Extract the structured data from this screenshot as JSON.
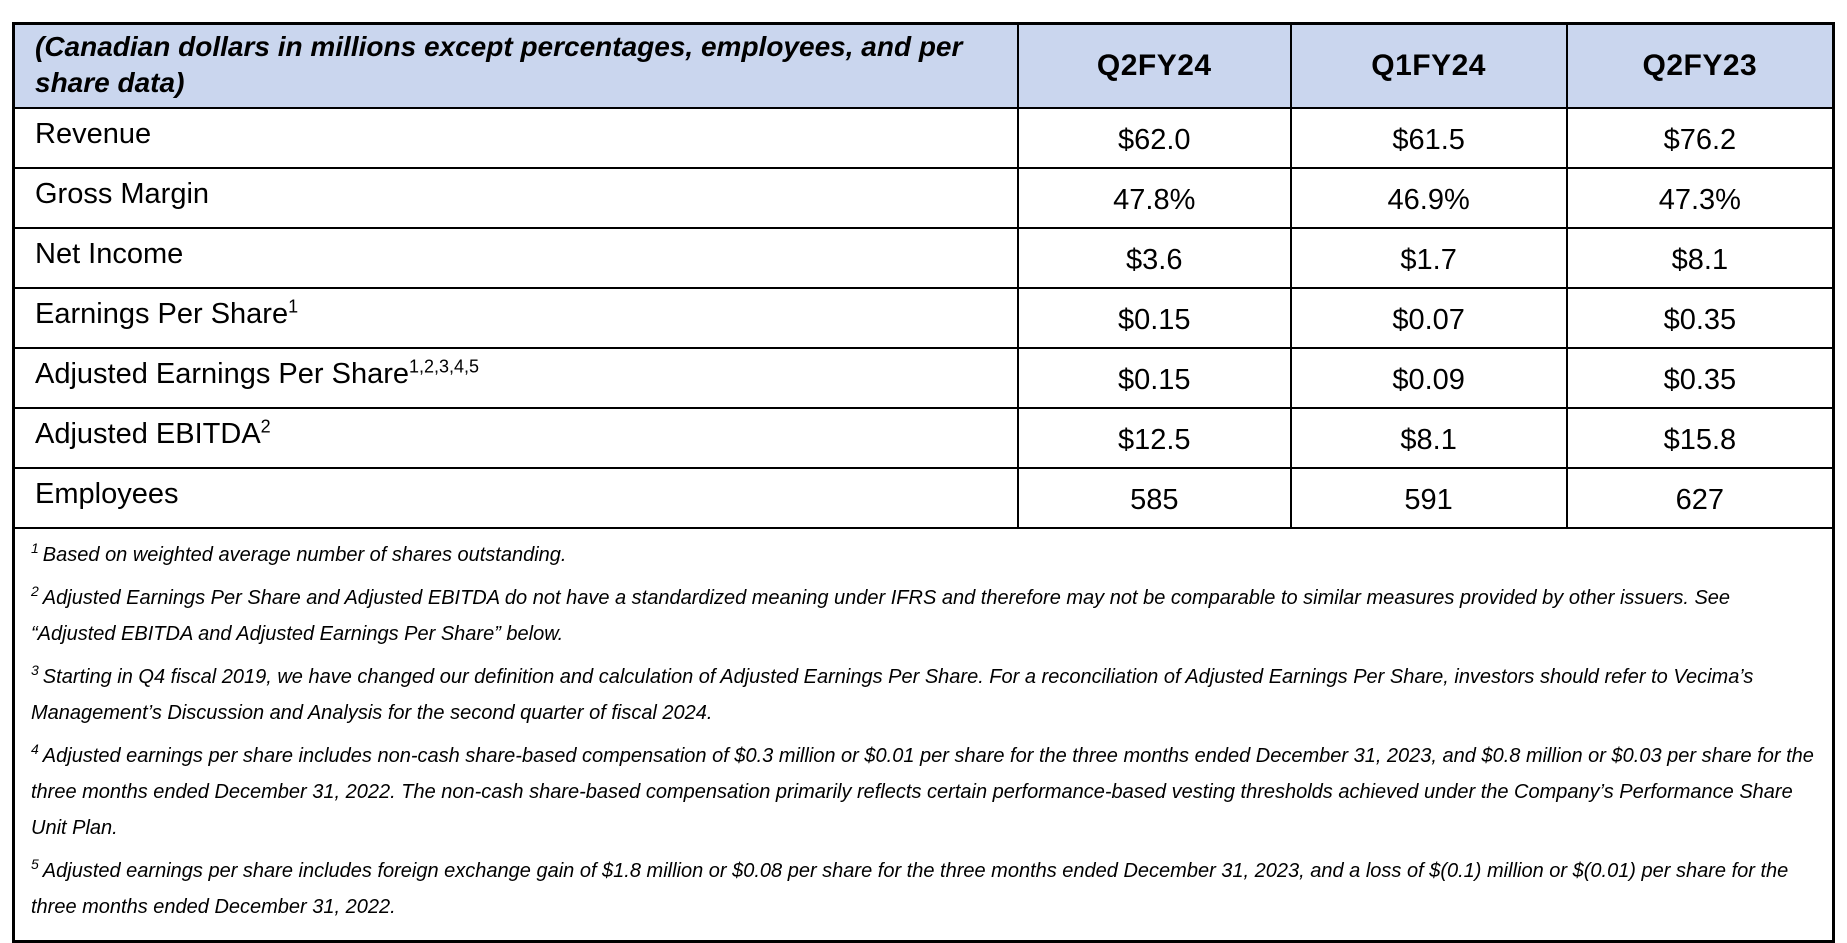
{
  "table": {
    "corner_label": "(Canadian dollars in millions except percentages, employees, and per share data)",
    "columns": [
      "Q2FY24",
      "Q1FY24",
      "Q2FY23"
    ],
    "rows": [
      {
        "label": "Revenue",
        "sup": "",
        "values": [
          "$62.0",
          "$61.5",
          "$76.2"
        ]
      },
      {
        "label": "Gross Margin",
        "sup": "",
        "values": [
          "47.8%",
          "46.9%",
          "47.3%"
        ]
      },
      {
        "label": "Net Income",
        "sup": "",
        "values": [
          "$3.6",
          "$1.7",
          "$8.1"
        ]
      },
      {
        "label": "Earnings Per Share",
        "sup": "1",
        "values": [
          "$0.15",
          "$0.07",
          "$0.35"
        ]
      },
      {
        "label": "Adjusted Earnings Per Share",
        "sup": "1,2,3,4,5",
        "values": [
          "$0.15",
          "$0.09",
          "$0.35"
        ]
      },
      {
        "label": "Adjusted EBITDA",
        "sup": "2",
        "values": [
          "$12.5",
          "$8.1",
          "$15.8"
        ]
      },
      {
        "label": "Employees",
        "sup": "",
        "values": [
          "585",
          "591",
          "627"
        ]
      }
    ],
    "footnotes": [
      {
        "sup": "1",
        "text": "Based on weighted average number of shares outstanding."
      },
      {
        "sup": "2",
        "text": "Adjusted Earnings Per Share and Adjusted EBITDA do not have a standardized meaning under IFRS and therefore may not be comparable to similar measures provided by other issuers. See “Adjusted EBITDA and Adjusted Earnings Per Share” below."
      },
      {
        "sup": "3",
        "text": "Starting in Q4 fiscal 2019, we have changed our definition and calculation of Adjusted Earnings Per Share. For a reconciliation of Adjusted Earnings Per Share, investors should refer to Vecima’s Management’s Discussion and Analysis for the second quarter of fiscal 2024."
      },
      {
        "sup": "4",
        "text": "Adjusted earnings per share includes non-cash share-based compensation of $0.3 million or $0.01 per share for the three months ended December 31, 2023, and $0.8 million or $0.03 per share for the three months ended December 31, 2022. The non-cash share-based compensation primarily reflects certain performance-based vesting thresholds achieved under the Company’s Performance Share Unit Plan."
      },
      {
        "sup": "5",
        "text": "Adjusted earnings per share includes foreign exchange gain of $1.8 million or $0.08 per share for the three months ended December 31, 2023, and a loss of $(0.1) million or $(0.01) per share for the three months ended December 31, 2022."
      }
    ],
    "colors": {
      "header_bg": "#cad6ee",
      "border": "#000000",
      "text": "#000000"
    }
  }
}
